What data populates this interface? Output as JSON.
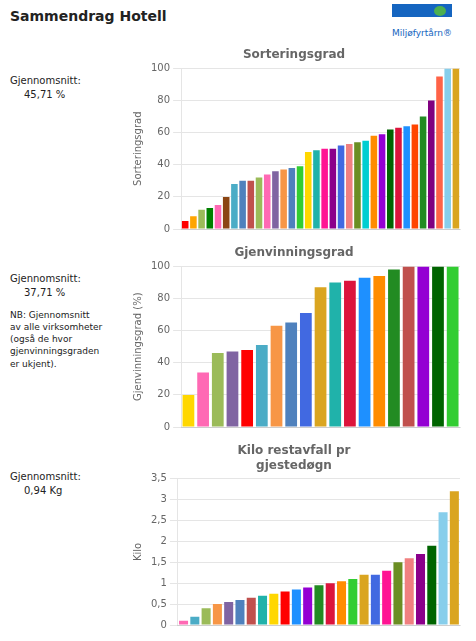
{
  "title": "Sammendrag Hotell",
  "annotations": [
    "Miljøfyrtårn®"
  ],
  "chart_data": [
    {
      "type": "bar",
      "title": "Sorteringsgrad",
      "ylabel": "Sorteringsgrad",
      "annotations": [
        "Gjennomsnitt:",
        "45,71  %"
      ],
      "categories": [
        null,
        null,
        null,
        null,
        null,
        null,
        null,
        null,
        null,
        null,
        null,
        null,
        null,
        null,
        null,
        null,
        null,
        null,
        null,
        null,
        null,
        null,
        null,
        null,
        null,
        null,
        null,
        null,
        null,
        null,
        null,
        null,
        null,
        null
      ],
      "values": [
        5,
        8,
        12,
        13,
        15,
        20,
        28,
        30,
        30,
        32,
        34,
        36,
        37,
        38,
        39,
        48,
        49,
        50,
        50,
        52,
        53,
        54,
        55,
        58,
        59,
        62,
        63,
        64,
        65,
        70,
        80,
        95,
        100,
        100
      ],
      "colors": [
        "#FF0000",
        "#FFA500",
        "#9BBB59",
        "#008000",
        "#FF69B4",
        "#8B4513",
        "#4BACC6",
        "#4F81BD",
        "#C0504D",
        "#9BBB59",
        "#FF69B4",
        "#8064A2",
        "#F79646",
        "#4F81BD",
        "#32CD32",
        "#FFD700",
        "#20B2AA",
        "#FF1493",
        "#8B008B",
        "#4169E1",
        "#F08080",
        "#6B8E23",
        "#00CED1",
        "#FF8C00",
        "#9400D3",
        "#006400",
        "#DC143C",
        "#1E90FF",
        "#FF4500",
        "#228B22",
        "#800080",
        "#FF6347",
        "#87CEEB",
        "#DAA520"
      ],
      "ylim": [
        0,
        100
      ],
      "yticks": [
        0,
        20,
        40,
        60,
        80,
        100
      ],
      "grid": true,
      "tick_labels": "y"
    },
    {
      "type": "bar",
      "title": "Gjenvinningsgrad",
      "ylabel": "Gjenvinningsgrad (%)",
      "annotations": [
        "Gjennomsnitt:",
        "37,71    %",
        "NB: Gjennomsnitt\nav alle virksomheter\n(også de hvor\ngjenvinningsgraden\ner ukjent)."
      ],
      "categories": [
        null,
        null,
        null,
        null,
        null,
        null,
        null,
        null,
        null,
        null,
        null,
        null,
        null,
        null,
        null,
        null,
        null,
        null,
        null
      ],
      "values": [
        20,
        34,
        46,
        47,
        48,
        51,
        63,
        65,
        71,
        87,
        90,
        91,
        93,
        94,
        98,
        100,
        100,
        100,
        100
      ],
      "colors": [
        "#FFD700",
        "#FF69B4",
        "#9BBB59",
        "#8064A2",
        "#FF0000",
        "#4BACC6",
        "#F79646",
        "#4F81BD",
        "#4169E1",
        "#DAA520",
        "#20B2AA",
        "#DC143C",
        "#1E90FF",
        "#FF8C00",
        "#228B22",
        "#C0504D",
        "#9400D3",
        "#006400",
        "#32CD32"
      ],
      "ylim": [
        0,
        100
      ],
      "yticks": [
        0,
        20,
        40,
        60,
        80,
        100
      ],
      "grid": true,
      "tick_labels": "y"
    },
    {
      "type": "bar",
      "title": "Kilo restavfall pr\ngjestedøgn",
      "ylabel": "Kilo",
      "annotations": [
        "Gjennomsnitt:",
        "0,94 Kg"
      ],
      "categories": [
        null,
        null,
        null,
        null,
        null,
        null,
        null,
        null,
        null,
        null,
        null,
        null,
        null,
        null,
        null,
        null,
        null,
        null,
        null,
        null,
        null,
        null,
        null,
        null,
        null
      ],
      "values": [
        0.1,
        0.2,
        0.4,
        0.5,
        0.55,
        0.6,
        0.65,
        0.7,
        0.75,
        0.8,
        0.85,
        0.9,
        0.95,
        1.0,
        1.05,
        1.1,
        1.2,
        1.2,
        1.3,
        1.5,
        1.6,
        1.7,
        1.9,
        2.7,
        3.2
      ],
      "colors": [
        "#FF69B4",
        "#4BACC6",
        "#9BBB59",
        "#F79646",
        "#8064A2",
        "#4F81BD",
        "#C0504D",
        "#20B2AA",
        "#FFD700",
        "#FF0000",
        "#1E90FF",
        "#9400D3",
        "#228B22",
        "#DC143C",
        "#FF8C00",
        "#32CD32",
        "#DAA520",
        "#4169E1",
        "#FF1493",
        "#6B8E23",
        "#F08080",
        "#8B008B",
        "#006400",
        "#87CEEB",
        "#DAA520"
      ],
      "ylim": [
        0,
        3.5
      ],
      "yticks": [
        0,
        {
          "value": 0.5,
          "label": "0,5"
        },
        1,
        {
          "value": 1.5,
          "label": "1,5"
        },
        2,
        {
          "value": 2.5,
          "label": "2,5"
        },
        3,
        {
          "value": 3.5,
          "label": "3,5"
        }
      ],
      "grid": true,
      "tick_labels": "y"
    }
  ]
}
